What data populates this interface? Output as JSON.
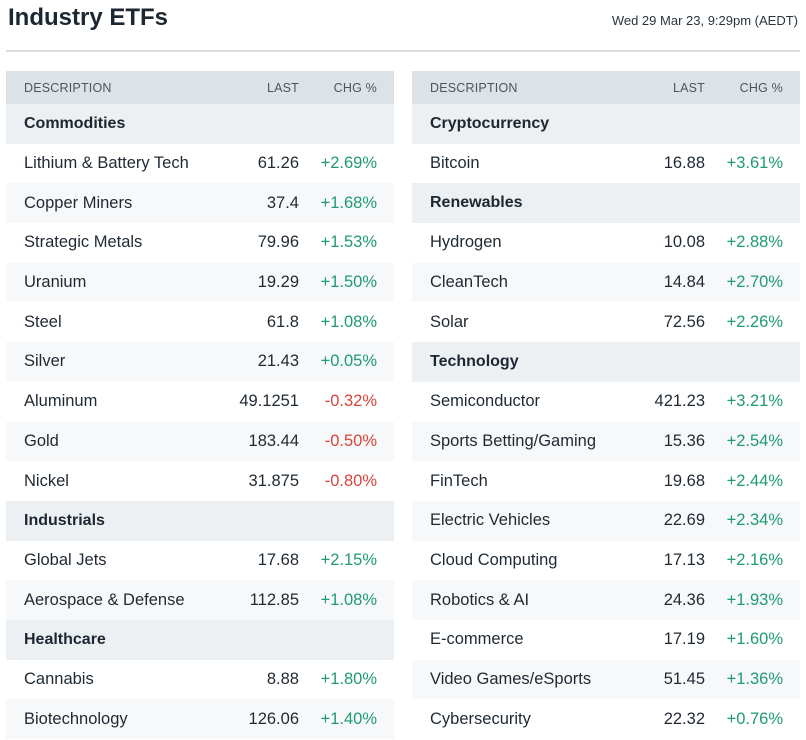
{
  "header": {
    "title": "Industry ETFs",
    "timestamp": "Wed 29 Mar 23, 9:29pm (AEDT)"
  },
  "columns": {
    "desc": "DESCRIPTION",
    "last": "LAST",
    "chg": "CHG %"
  },
  "colors": {
    "positive": "#1e9b73",
    "negative": "#d8443a",
    "header_bg": "#dde2e7",
    "category_bg": "#edf0f3"
  },
  "left_table": [
    {
      "type": "category",
      "name": "Commodities"
    },
    {
      "type": "item",
      "name": "Lithium & Battery Tech",
      "last": "61.26",
      "chg": "+2.69%",
      "dir": "pos"
    },
    {
      "type": "item",
      "name": "Copper Miners",
      "last": "37.4",
      "chg": "+1.68%",
      "dir": "pos"
    },
    {
      "type": "item",
      "name": "Strategic Metals",
      "last": "79.96",
      "chg": "+1.53%",
      "dir": "pos"
    },
    {
      "type": "item",
      "name": "Uranium",
      "last": "19.29",
      "chg": "+1.50%",
      "dir": "pos"
    },
    {
      "type": "item",
      "name": "Steel",
      "last": "61.8",
      "chg": "+1.08%",
      "dir": "pos"
    },
    {
      "type": "item",
      "name": "Silver",
      "last": "21.43",
      "chg": "+0.05%",
      "dir": "pos"
    },
    {
      "type": "item",
      "name": "Aluminum",
      "last": "49.1251",
      "chg": "-0.32%",
      "dir": "neg"
    },
    {
      "type": "item",
      "name": "Gold",
      "last": "183.44",
      "chg": "-0.50%",
      "dir": "neg"
    },
    {
      "type": "item",
      "name": "Nickel",
      "last": "31.875",
      "chg": "-0.80%",
      "dir": "neg"
    },
    {
      "type": "category",
      "name": "Industrials"
    },
    {
      "type": "item",
      "name": "Global Jets",
      "last": "17.68",
      "chg": "+2.15%",
      "dir": "pos"
    },
    {
      "type": "item",
      "name": "Aerospace & Defense",
      "last": "112.85",
      "chg": "+1.08%",
      "dir": "pos"
    },
    {
      "type": "category",
      "name": "Healthcare"
    },
    {
      "type": "item",
      "name": "Cannabis",
      "last": "8.88",
      "chg": "+1.80%",
      "dir": "pos"
    },
    {
      "type": "item",
      "name": "Biotechnology",
      "last": "126.06",
      "chg": "+1.40%",
      "dir": "pos"
    }
  ],
  "right_table": [
    {
      "type": "category",
      "name": "Cryptocurrency"
    },
    {
      "type": "item",
      "name": "Bitcoin",
      "last": "16.88",
      "chg": "+3.61%",
      "dir": "pos"
    },
    {
      "type": "category",
      "name": "Renewables"
    },
    {
      "type": "item",
      "name": "Hydrogen",
      "last": "10.08",
      "chg": "+2.88%",
      "dir": "pos"
    },
    {
      "type": "item",
      "name": "CleanTech",
      "last": "14.84",
      "chg": "+2.70%",
      "dir": "pos"
    },
    {
      "type": "item",
      "name": "Solar",
      "last": "72.56",
      "chg": "+2.26%",
      "dir": "pos"
    },
    {
      "type": "category",
      "name": "Technology"
    },
    {
      "type": "item",
      "name": "Semiconductor",
      "last": "421.23",
      "chg": "+3.21%",
      "dir": "pos"
    },
    {
      "type": "item",
      "name": "Sports Betting/Gaming",
      "last": "15.36",
      "chg": "+2.54%",
      "dir": "pos"
    },
    {
      "type": "item",
      "name": "FinTech",
      "last": "19.68",
      "chg": "+2.44%",
      "dir": "pos"
    },
    {
      "type": "item",
      "name": "Electric Vehicles",
      "last": "22.69",
      "chg": "+2.34%",
      "dir": "pos"
    },
    {
      "type": "item",
      "name": "Cloud Computing",
      "last": "17.13",
      "chg": "+2.16%",
      "dir": "pos"
    },
    {
      "type": "item",
      "name": "Robotics & AI",
      "last": "24.36",
      "chg": "+1.93%",
      "dir": "pos"
    },
    {
      "type": "item",
      "name": "E-commerce",
      "last": "17.19",
      "chg": "+1.60%",
      "dir": "pos"
    },
    {
      "type": "item",
      "name": "Video Games/eSports",
      "last": "51.45",
      "chg": "+1.36%",
      "dir": "pos"
    },
    {
      "type": "item",
      "name": "Cybersecurity",
      "last": "22.32",
      "chg": "+0.76%",
      "dir": "pos"
    }
  ]
}
